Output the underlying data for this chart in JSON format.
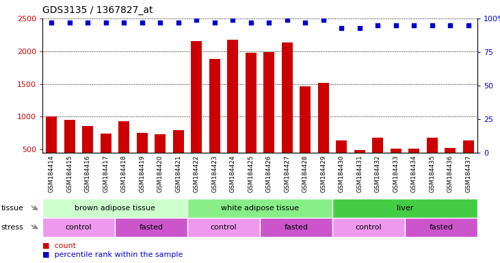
{
  "title": "GDS3135 / 1367827_at",
  "samples": [
    "GSM184414",
    "GSM184415",
    "GSM184416",
    "GSM184417",
    "GSM184418",
    "GSM184419",
    "GSM184420",
    "GSM184421",
    "GSM184422",
    "GSM184423",
    "GSM184424",
    "GSM184425",
    "GSM184426",
    "GSM184427",
    "GSM184428",
    "GSM184429",
    "GSM184430",
    "GSM184431",
    "GSM184432",
    "GSM184433",
    "GSM184434",
    "GSM184435",
    "GSM184436",
    "GSM184437"
  ],
  "counts": [
    1000,
    950,
    855,
    740,
    930,
    755,
    735,
    800,
    2150,
    1880,
    2180,
    1980,
    1990,
    2130,
    1460,
    1520,
    640,
    490,
    680,
    510,
    510,
    680,
    520,
    640
  ],
  "percentile_ranks": [
    97,
    97,
    97,
    97,
    97,
    97,
    97,
    97,
    99,
    97,
    99,
    97,
    97,
    99,
    97,
    99,
    93,
    93,
    95,
    95,
    95,
    95,
    95,
    95
  ],
  "bar_color": "#CC0000",
  "dot_color": "#0000CC",
  "ylim_left": [
    450,
    2500
  ],
  "ylim_right": [
    0,
    100
  ],
  "yticks_left": [
    500,
    1000,
    1500,
    2000,
    2500
  ],
  "yticks_right": [
    0,
    25,
    50,
    75,
    100
  ],
  "grid_values": [
    1000,
    1500,
    2000,
    2500
  ],
  "tissue_groups": [
    {
      "label": "brown adipose tissue",
      "start": 0,
      "end": 8,
      "color": "#CCFFCC"
    },
    {
      "label": "white adipose tissue",
      "start": 8,
      "end": 16,
      "color": "#88EE88"
    },
    {
      "label": "liver",
      "start": 16,
      "end": 24,
      "color": "#44CC44"
    }
  ],
  "stress_groups": [
    {
      "label": "control",
      "start": 0,
      "end": 4,
      "color": "#EE99EE"
    },
    {
      "label": "fasted",
      "start": 4,
      "end": 8,
      "color": "#CC55CC"
    },
    {
      "label": "control",
      "start": 8,
      "end": 12,
      "color": "#EE99EE"
    },
    {
      "label": "fasted",
      "start": 12,
      "end": 16,
      "color": "#CC55CC"
    },
    {
      "label": "control",
      "start": 16,
      "end": 20,
      "color": "#EE99EE"
    },
    {
      "label": "fasted",
      "start": 20,
      "end": 24,
      "color": "#CC55CC"
    }
  ],
  "background_color": "#FFFFFF",
  "plot_bg_color": "#FFFFFF",
  "xtick_bg_color": "#DDDDDD"
}
